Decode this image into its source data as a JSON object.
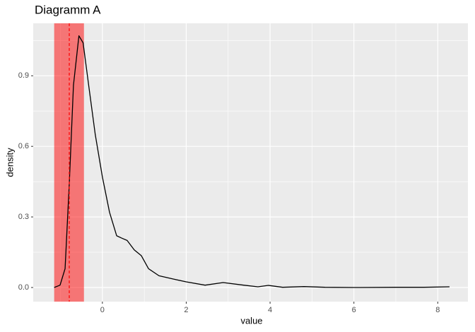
{
  "chart_data": {
    "type": "line",
    "title": "Diagramm A",
    "x_label": "value",
    "y_label": "density",
    "x": [
      -1.15,
      -1.01,
      -0.89,
      -0.79,
      -0.69,
      -0.56,
      -0.46,
      -0.32,
      -0.17,
      0,
      0.17,
      0.34,
      0.46,
      0.59,
      0.76,
      0.93,
      1.1,
      1.35,
      1.69,
      2.0,
      2.45,
      2.88,
      3.37,
      3.71,
      3.96,
      4.3,
      4.81,
      5.31,
      6.0,
      7.0,
      7.67,
      8.28
    ],
    "series": [
      {
        "name": "density",
        "color": "#000000",
        "values": [
          0,
          0.01,
          0.08,
          0.44,
          0.86,
          1.07,
          1.04,
          0.85,
          0.65,
          0.47,
          0.32,
          0.22,
          0.21,
          0.2,
          0.16,
          0.135,
          0.08,
          0.05,
          0.036,
          0.024,
          0.01,
          0.021,
          0.01,
          0.003,
          0.009,
          0.001,
          0.004,
          0.001,
          0,
          0.001,
          0.001,
          0.003
        ]
      }
    ],
    "shaded_region": {
      "xmin": -1.15,
      "xmax": -0.44,
      "color": "#ff0000"
    },
    "vline": {
      "x": -0.79,
      "color": "#ff0000"
    },
    "xlim": [
      -1.65,
      8.72
    ],
    "ylim": [
      -0.06,
      1.123
    ],
    "xticks": [
      0,
      2,
      4,
      6,
      8
    ],
    "yticks": [
      {
        "value": 0,
        "label": "0.0"
      },
      {
        "value": 0.3,
        "label": "0.3"
      },
      {
        "value": 0.6,
        "label": "0.6"
      },
      {
        "value": 0.9,
        "label": "0.9"
      }
    ],
    "minor_xticks": [
      -1,
      1,
      3,
      5,
      7
    ],
    "minor_yticks": [
      0.15,
      0.45,
      0.75,
      1.05
    ],
    "grid": true
  }
}
